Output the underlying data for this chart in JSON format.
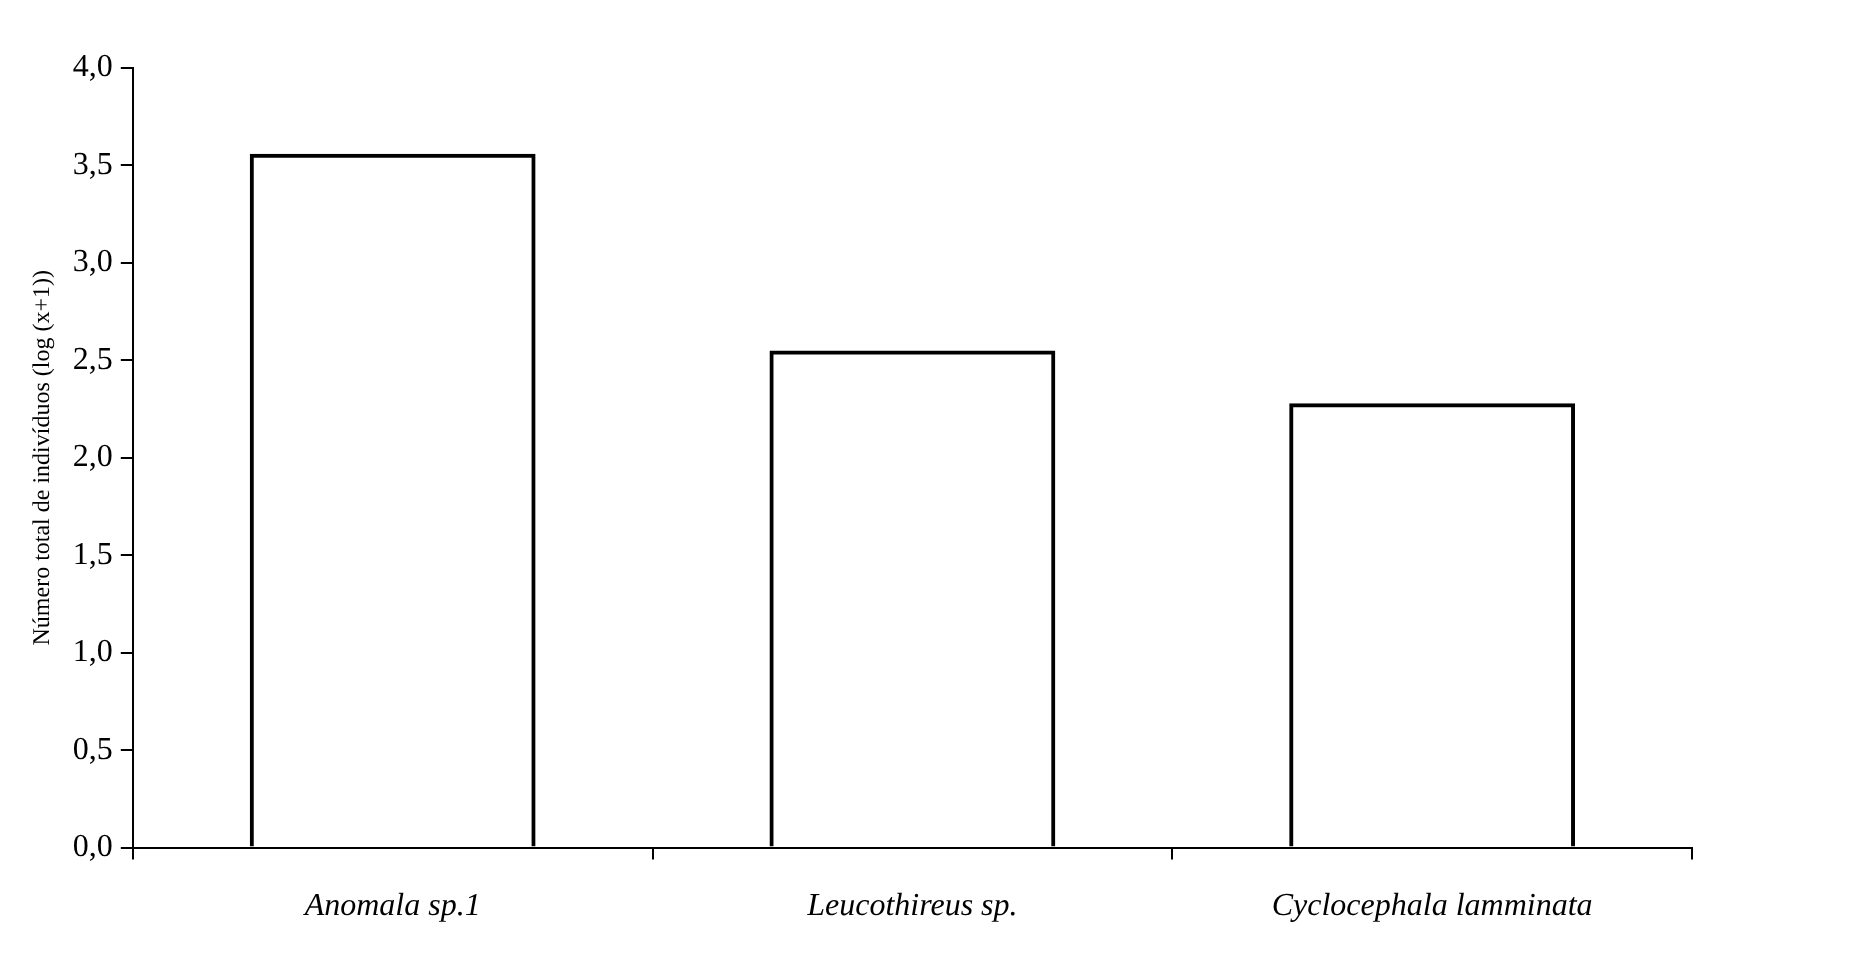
{
  "chart_data": {
    "type": "bar",
    "ylabel": "Número total de indivíduos (log (x+1))",
    "categories": [
      "Anomala sp.1",
      "Leucothireus sp.",
      "Cyclocephala lamminata"
    ],
    "values": [
      3.56,
      2.55,
      2.28
    ],
    "color": "#000000",
    "ylim": [
      0,
      4
    ],
    "yticks": [
      {
        "value": 0,
        "label": "0,0"
      },
      {
        "value": 0.5,
        "label": "0,5"
      },
      {
        "value": 1,
        "label": "1,0"
      },
      {
        "value": 1.5,
        "label": "1,5"
      },
      {
        "value": 2,
        "label": "2,0"
      },
      {
        "value": 2.5,
        "label": "2,5"
      },
      {
        "value": 3,
        "label": "3,0"
      },
      {
        "value": 3.5,
        "label": "3,5"
      },
      {
        "value": 4,
        "label": "4,0"
      }
    ],
    "grid": false,
    "legend": false
  }
}
